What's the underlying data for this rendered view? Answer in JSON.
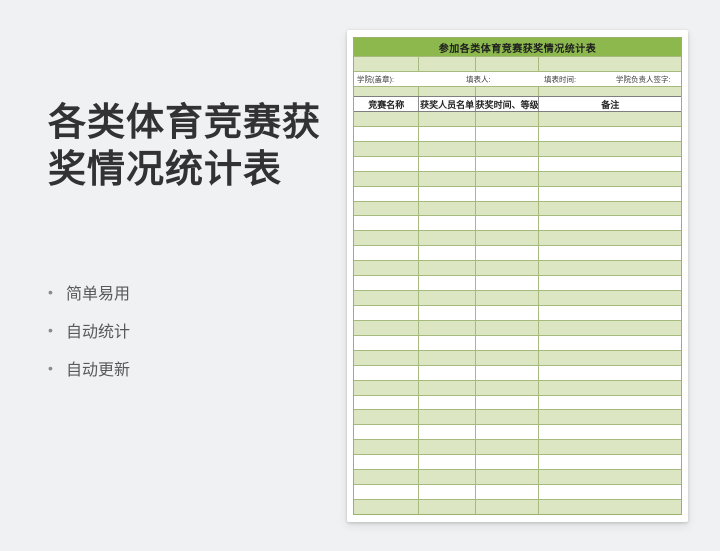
{
  "left_panel": {
    "title_lines": [
      "各类体育竞赛获",
      "奖情况统计表"
    ],
    "bullet_char": "•",
    "features": [
      "简单易用",
      "自动统计",
      "自动更新"
    ]
  },
  "document": {
    "sheet_title": "参加各类体育竞赛获奖情况统计表",
    "meta_labels": [
      "学院(盖章):",
      "填表人:",
      "填表时间:",
      "学院负责人签字:"
    ],
    "columns": [
      "竞赛名称",
      "获奖人员名单",
      "获奖时间、等级",
      "备注"
    ],
    "empty_row_count": 27
  },
  "colors": {
    "canvas_bg": "#f0f1f3",
    "sheet_title_green": "#8cb84e",
    "row_green": "#dce6c3",
    "grid_green": "#a5ba7c",
    "header_border_gray": "#7f7f7f",
    "title_text": "#323235",
    "feature_text": "#595959"
  }
}
